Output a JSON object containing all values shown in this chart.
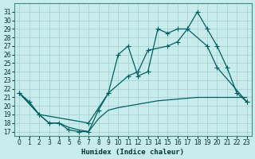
{
  "xlabel": "Humidex (Indice chaleur)",
  "background_color": "#c8ecec",
  "grid_color": "#a8d4d4",
  "line_color": "#006060",
  "xlim": [
    -0.5,
    23.5
  ],
  "ylim": [
    16.5,
    32.0
  ],
  "yticks": [
    17,
    18,
    19,
    20,
    21,
    22,
    23,
    24,
    25,
    26,
    27,
    28,
    29,
    30,
    31
  ],
  "xticks": [
    0,
    1,
    2,
    3,
    4,
    5,
    6,
    7,
    8,
    9,
    10,
    11,
    12,
    13,
    14,
    15,
    16,
    17,
    18,
    19,
    20,
    21,
    22,
    23
  ],
  "line_jagged": {
    "x": [
      0,
      1,
      2,
      3,
      4,
      5,
      6,
      7,
      8,
      9,
      10,
      11,
      12,
      13,
      14,
      15,
      16,
      17,
      18,
      19,
      20,
      21,
      22,
      23
    ],
    "y": [
      21.5,
      20.5,
      19.0,
      18.0,
      18.0,
      17.2,
      17.0,
      17.0,
      19.5,
      21.5,
      26.0,
      27.0,
      23.5,
      24.0,
      29.0,
      28.5,
      29.0,
      29.0,
      31.0,
      29.0,
      27.0,
      24.5,
      21.5,
      20.5
    ]
  },
  "line_diag_upper": {
    "x": [
      0,
      2,
      7,
      9,
      11,
      12,
      13,
      15,
      16,
      17,
      19,
      20,
      23
    ],
    "y": [
      21.5,
      19.0,
      18.0,
      21.5,
      23.5,
      24.0,
      26.5,
      27.0,
      27.5,
      29.0,
      27.0,
      24.5,
      20.5
    ]
  },
  "line_diag_lower": {
    "x": [
      0,
      2,
      3,
      4,
      5,
      6,
      7,
      8,
      9,
      10,
      11,
      12,
      13,
      14,
      15,
      16,
      17,
      18,
      19,
      20,
      21,
      22,
      23
    ],
    "y": [
      21.5,
      19.0,
      18.0,
      18.0,
      17.5,
      17.2,
      17.0,
      18.5,
      19.5,
      19.8,
      20.0,
      20.2,
      20.4,
      20.6,
      20.7,
      20.8,
      20.9,
      21.0,
      21.0,
      21.0,
      21.0,
      21.0,
      21.0
    ]
  }
}
